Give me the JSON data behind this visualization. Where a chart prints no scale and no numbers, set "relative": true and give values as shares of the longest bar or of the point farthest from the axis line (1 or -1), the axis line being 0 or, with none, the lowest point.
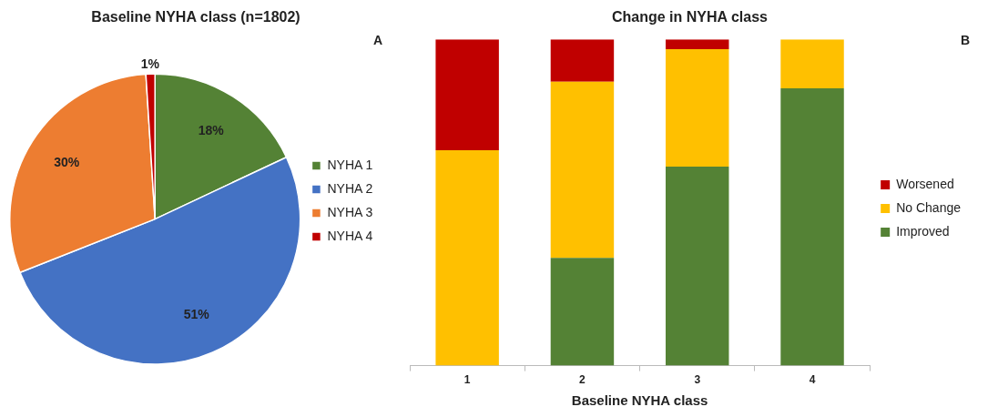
{
  "chart_data": [
    {
      "type": "pie",
      "title": "Baseline NYHA class (n=1802)",
      "categories": [
        "NYHA 1",
        "NYHA 2",
        "NYHA 3",
        "NYHA 4"
      ],
      "values": [
        18,
        51,
        30,
        1
      ],
      "colors": [
        "#548235",
        "#4472c4",
        "#ed7d31",
        "#c00000"
      ],
      "value_labels": [
        "18%",
        "51%",
        "30%",
        "1%"
      ],
      "legend": "right",
      "annotations": [
        "A"
      ]
    },
    {
      "type": "bar",
      "title": "Change in NYHA class",
      "categories": [
        "1",
        "2",
        "3",
        "4"
      ],
      "xlabel": "Baseline NYHA class",
      "stacked": true,
      "relative": true,
      "grid": false,
      "legend": "right",
      "annotations": [
        "B"
      ],
      "series": [
        {
          "name": "Improved",
          "color": "#548235",
          "values": [
            0,
            0.33,
            0.61,
            0.85
          ]
        },
        {
          "name": "No Change",
          "color": "#ffc000",
          "values": [
            0.66,
            0.54,
            0.36,
            0.15
          ]
        },
        {
          "name": "Worsened",
          "color": "#c00000",
          "values": [
            0.34,
            0.13,
            0.03,
            0
          ]
        }
      ]
    }
  ]
}
